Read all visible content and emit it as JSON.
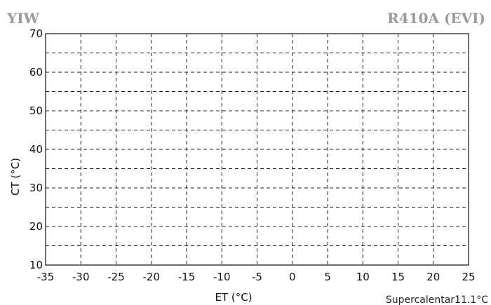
{
  "chart_data": {
    "type": "line",
    "title_left": "YIW",
    "title_right": "R410A (EVI)",
    "xlabel": "ET (°C)",
    "ylabel": "CT (°C)",
    "xlim": [
      -35,
      25
    ],
    "ylim": [
      10,
      70
    ],
    "x_ticks": [
      -35,
      -30,
      -25,
      -20,
      -15,
      -10,
      -5,
      0,
      5,
      10,
      15,
      20,
      25
    ],
    "y_ticks": [
      10,
      20,
      30,
      40,
      50,
      60,
      70
    ],
    "x_grid_step": 5,
    "y_grid_step": 5,
    "grid": true,
    "grid_style": "dashed",
    "footer_label": "Supercalentar",
    "footer_value": "11.1°C",
    "series": []
  }
}
